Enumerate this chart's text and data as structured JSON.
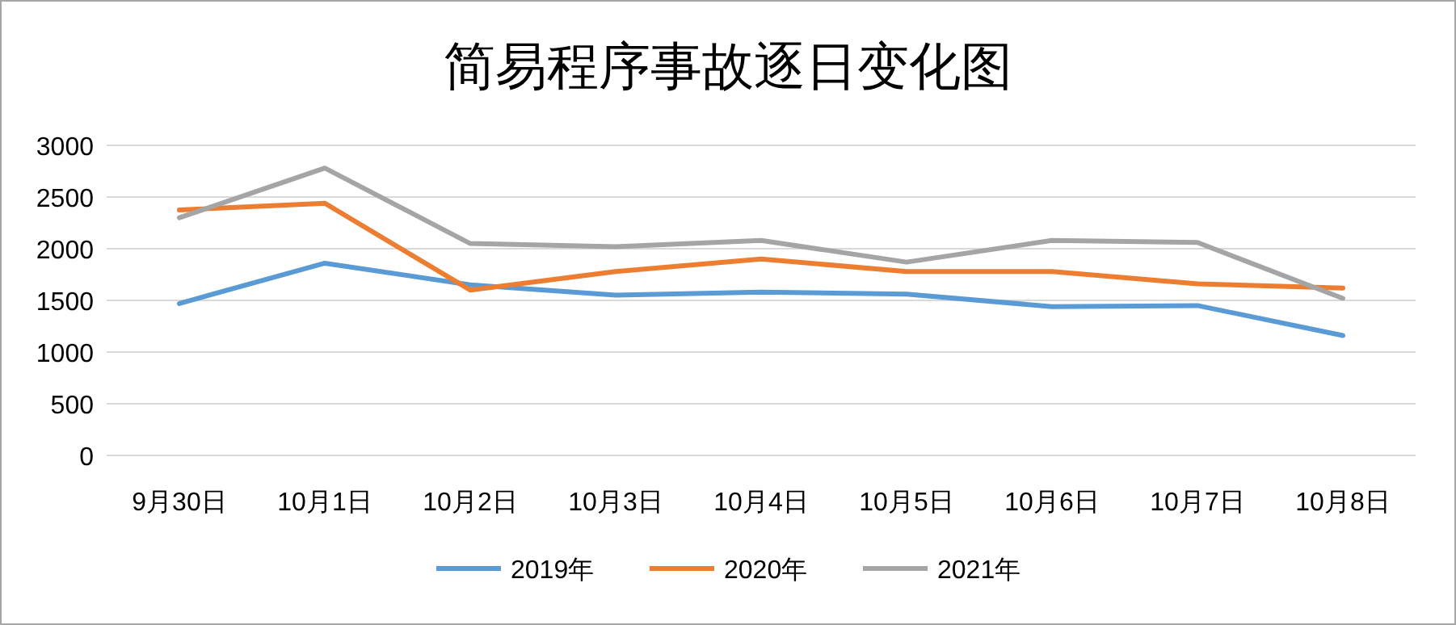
{
  "chart_data": {
    "type": "line",
    "title": "简易程序事故逐日变化图",
    "categories": [
      "9月30日",
      "10月1日",
      "10月2日",
      "10月3日",
      "10月4日",
      "10月5日",
      "10月6日",
      "10月7日",
      "10月8日"
    ],
    "series": [
      {
        "name": "2019年",
        "color": "#5b9bd5",
        "values": [
          1470,
          1860,
          1650,
          1550,
          1580,
          1560,
          1440,
          1450,
          1160
        ]
      },
      {
        "name": "2020年",
        "color": "#ed7d31",
        "values": [
          2375,
          2440,
          1600,
          1780,
          1900,
          1780,
          1780,
          1660,
          1620
        ]
      },
      {
        "name": "2021年",
        "color": "#a5a5a5",
        "values": [
          2300,
          2780,
          2050,
          2020,
          2080,
          1870,
          2080,
          2060,
          1520
        ]
      }
    ],
    "ylim": [
      0,
      3000
    ],
    "yticks": [
      0,
      500,
      1000,
      1500,
      2000,
      2500,
      3000
    ],
    "grid": "y",
    "legend": "bottom",
    "marker": "none",
    "line_style": "solid"
  }
}
